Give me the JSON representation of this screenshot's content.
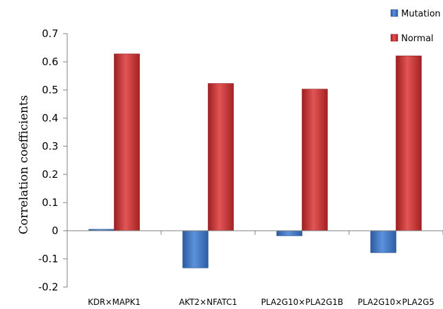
{
  "chart_data": {
    "type": "bar",
    "title": "",
    "xlabel": "",
    "ylabel": "Correlation coefficients",
    "ylim": [
      -0.2,
      0.7
    ],
    "yticks": [
      -0.2,
      -0.1,
      0,
      0.1,
      0.2,
      0.3,
      0.4,
      0.5,
      0.6,
      0.7
    ],
    "ytick_labels": [
      "-0.2",
      "-0.1",
      "0",
      "0.1",
      "0.2",
      "0.3",
      "0.4",
      "0.5",
      "0.6",
      "0.7"
    ],
    "categories": [
      "KDR×MAPK1",
      "AKT2×NFATC1",
      "PLA2G10×PLA2G1B",
      "PLA2G10×PLA2G5"
    ],
    "series": [
      {
        "name": "Mutation",
        "color": "#3a72c2",
        "values": [
          0.005,
          -0.132,
          -0.018,
          -0.078
        ]
      },
      {
        "name": "Normal",
        "color": "#c42b2b",
        "values": [
          0.628,
          0.523,
          0.503,
          0.621
        ]
      }
    ],
    "grid": false,
    "legend": "top-right"
  }
}
